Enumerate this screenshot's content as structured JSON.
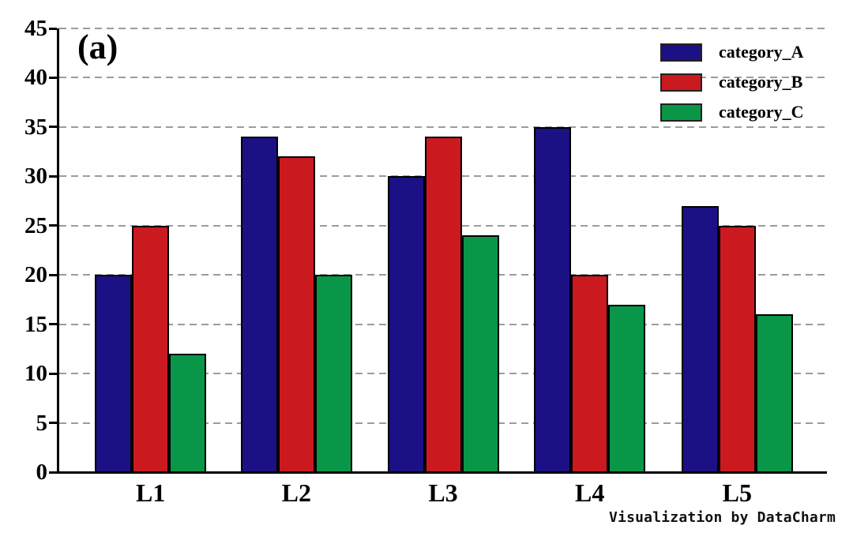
{
  "chart_data": {
    "type": "bar",
    "panel_label": "(a)",
    "categories": [
      "L1",
      "L2",
      "L3",
      "L4",
      "L5"
    ],
    "series": [
      {
        "name": "category_A",
        "color": "#1c1085",
        "values": [
          20,
          34,
          30,
          35,
          27
        ]
      },
      {
        "name": "category_B",
        "color": "#ca1a20",
        "values": [
          25,
          32,
          34,
          20,
          25
        ]
      },
      {
        "name": "category_C",
        "color": "#0a9648",
        "values": [
          12,
          20,
          24,
          17,
          16
        ]
      }
    ],
    "ylim": [
      0,
      45
    ],
    "yticks": [
      0,
      5,
      10,
      15,
      20,
      25,
      30,
      35,
      40,
      45
    ],
    "xlabel": "",
    "ylabel": "",
    "grid": "horizontal-dashed",
    "grid_color": "#9c9c9c",
    "legend_position": "top-right",
    "axis_color": "#000000",
    "watermark": "Visualization by DataCharm"
  }
}
